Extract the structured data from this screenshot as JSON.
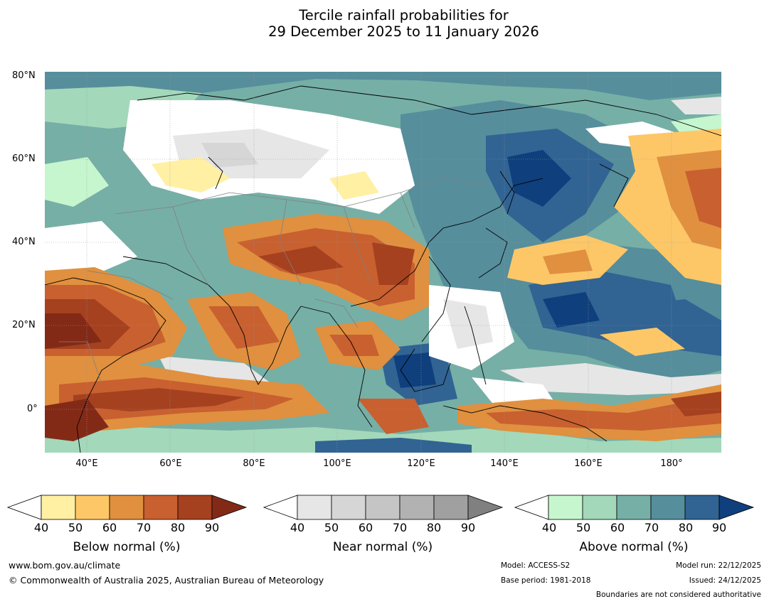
{
  "title": {
    "line1": "Tercile rainfall probabilities for",
    "line2": "29 December 2025 to 11 January 2026"
  },
  "map": {
    "lat_labels": [
      "80°N",
      "60°N",
      "40°N",
      "20°N",
      "0°"
    ],
    "lon_labels": [
      "40°E",
      "60°E",
      "80°E",
      "100°E",
      "120°E",
      "140°E",
      "160°E",
      "180°"
    ],
    "colors": {
      "ocean_base": "#6ea8a5",
      "below": [
        "#fff0a3",
        "#fdc767",
        "#e0903f",
        "#c86030",
        "#a5411f",
        "#832a17"
      ],
      "near": [
        "#e6e6e6",
        "#d6d6d6",
        "#c5c5c5",
        "#b2b2b2",
        "#a0a0a0",
        "#808080"
      ],
      "above": [
        "#c6f6cd",
        "#a3d8ba",
        "#76afa6",
        "#568e9c",
        "#316393",
        "#0f3f7c"
      ]
    }
  },
  "colorbars": [
    {
      "name": "below",
      "title": "Below normal (%)",
      "ticks": [
        "40",
        "50",
        "60",
        "70",
        "80",
        "90"
      ],
      "colors": [
        "#ffffff",
        "#fff0a3",
        "#fdc767",
        "#e0903f",
        "#c86030",
        "#a5411f",
        "#832a17"
      ]
    },
    {
      "name": "near",
      "title": "Near normal (%)",
      "ticks": [
        "40",
        "50",
        "60",
        "70",
        "80",
        "90"
      ],
      "colors": [
        "#ffffff",
        "#e6e6e6",
        "#d6d6d6",
        "#c5c5c5",
        "#b2b2b2",
        "#a0a0a0",
        "#808080"
      ]
    },
    {
      "name": "above",
      "title": "Above normal (%)",
      "ticks": [
        "40",
        "50",
        "60",
        "70",
        "80",
        "90"
      ],
      "colors": [
        "#ffffff",
        "#c6f6cd",
        "#a3d8ba",
        "#76afa6",
        "#568e9c",
        "#316393",
        "#0f3f7c"
      ]
    }
  ],
  "footer": {
    "website": "www.bom.gov.au/climate",
    "copyright": "© Commonwealth of Australia 2025, Australian Bureau of Meteorology",
    "model": "Model: ACCESS-S2",
    "base_period": "Base period: 1981-2018",
    "model_run": "Model run: 22/12/2025",
    "issued": "Issued: 24/12/2025",
    "disclaimer": "Boundaries are not considered authoritative"
  }
}
